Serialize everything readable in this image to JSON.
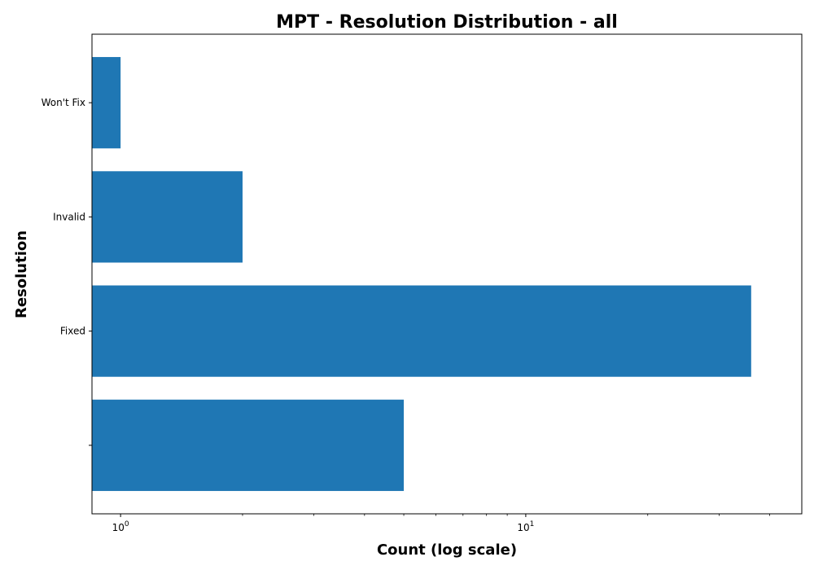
{
  "chart_data": {
    "type": "bar",
    "orientation": "horizontal",
    "title": "MPT - Resolution Distribution - all",
    "xlabel": "Count (log scale)",
    "ylabel": "Resolution",
    "xscale": "log",
    "xlim": [
      0.85,
      48
    ],
    "categories": [
      "",
      "Fixed",
      "Invalid",
      "Won't Fix"
    ],
    "values": [
      5,
      36,
      2,
      1
    ],
    "color": "#1f77b4",
    "grid": false,
    "legend": "none",
    "x_major_ticks": [
      {
        "value": 1,
        "base": "10",
        "exponent": "0"
      },
      {
        "value": 10,
        "base": "10",
        "exponent": "1"
      }
    ],
    "x_minor_ticks": [
      2,
      3,
      4,
      5,
      6,
      7,
      8,
      9,
      20,
      30,
      40
    ]
  }
}
